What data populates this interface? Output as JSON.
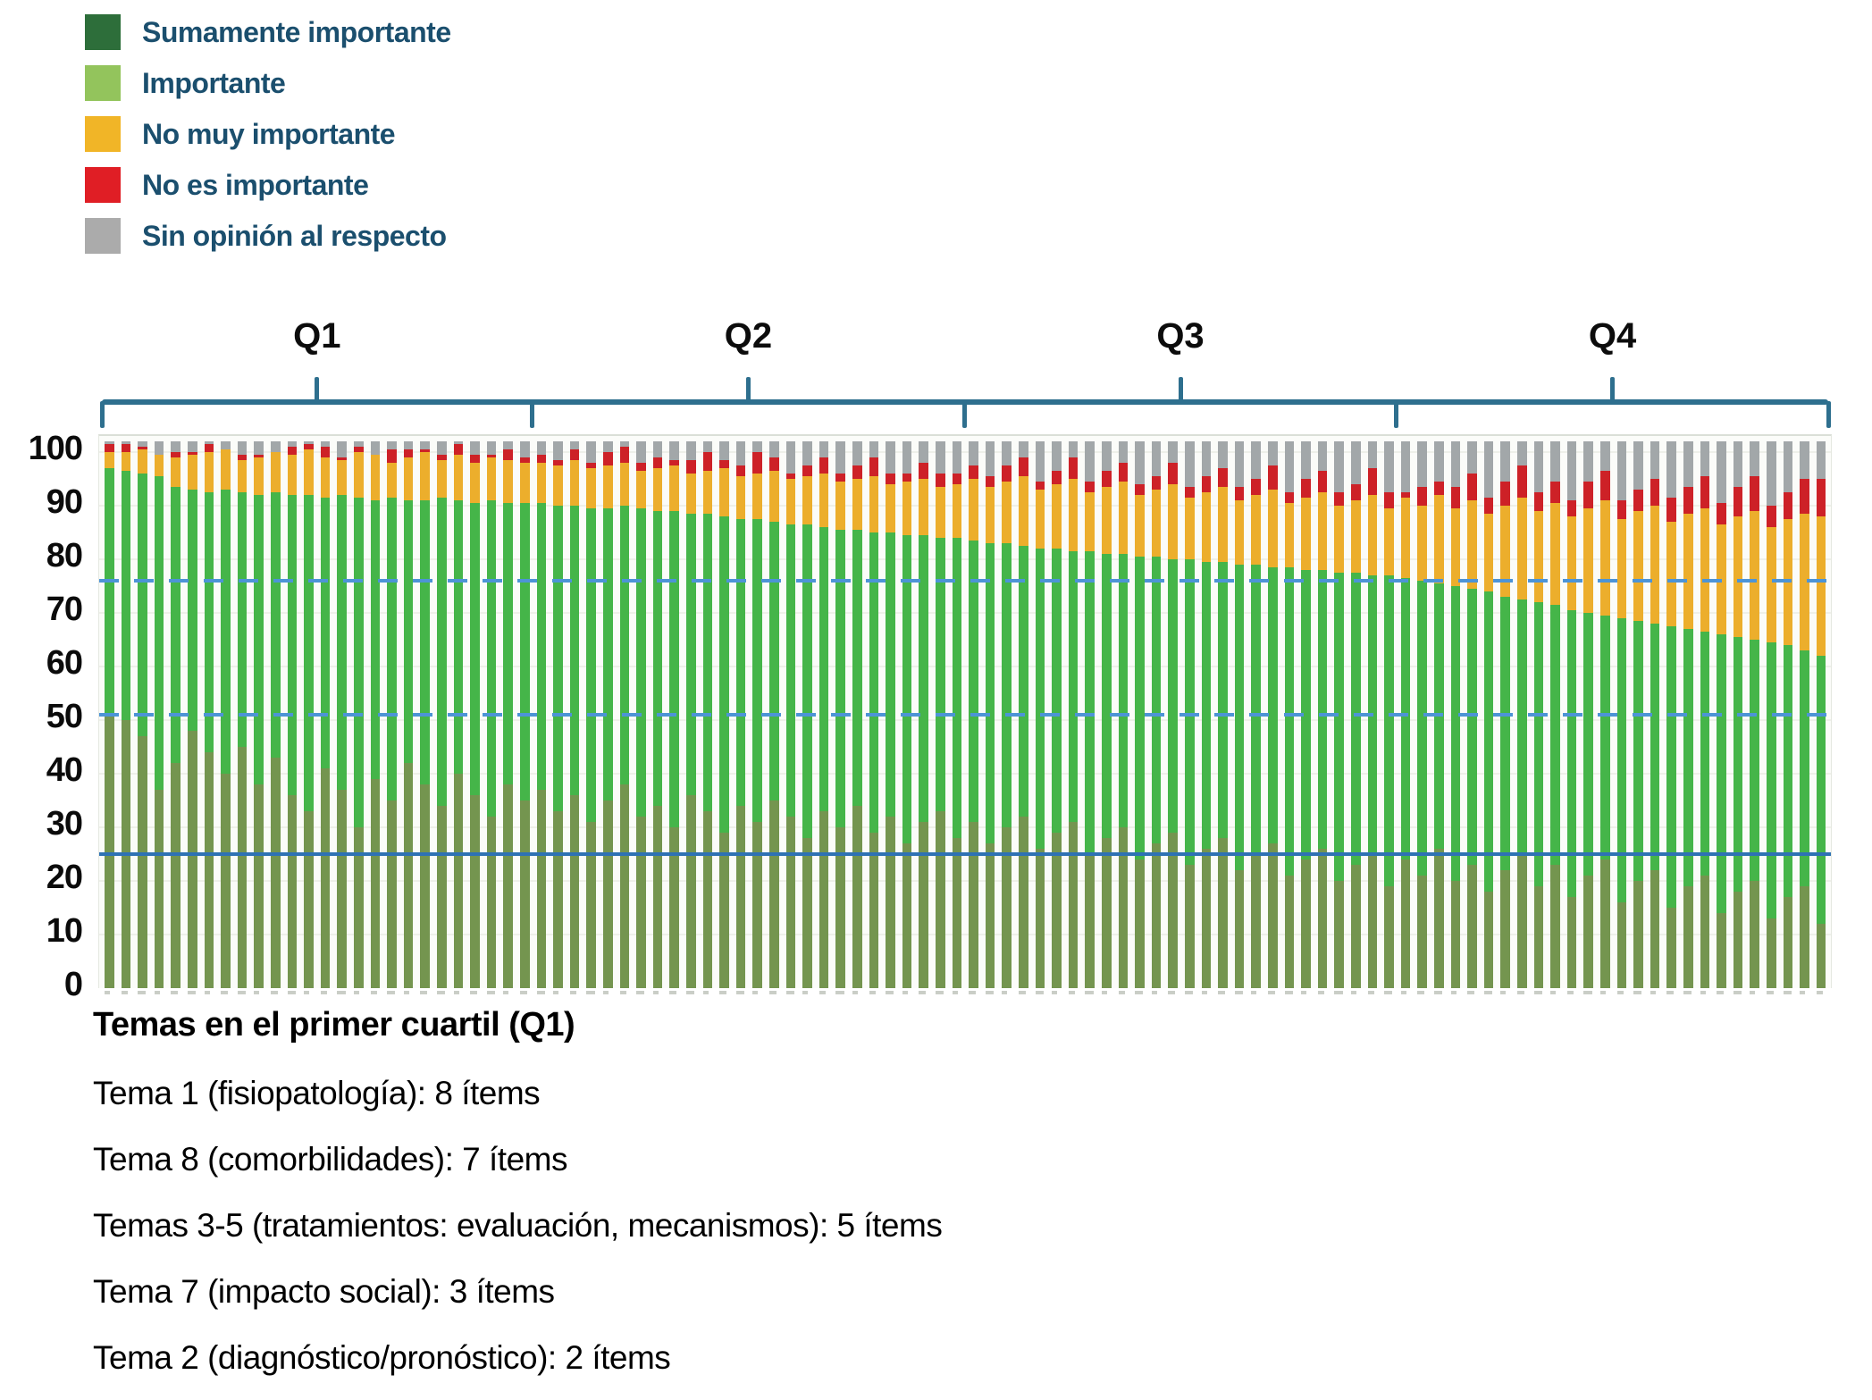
{
  "legend": {
    "items": [
      {
        "label": "Sumamente importante",
        "color": "#2d6e3a",
        "icon": "swatch-dark-green"
      },
      {
        "label": "Importante",
        "color": "#93c45c",
        "icon": "swatch-light-green"
      },
      {
        "label": "No muy importante",
        "color": "#f1b527",
        "icon": "swatch-yellow"
      },
      {
        "label": "No es importante",
        "color": "#e01e25",
        "icon": "swatch-red"
      },
      {
        "label": "Sin opinión al respecto",
        "color": "#ababab",
        "icon": "swatch-gray"
      }
    ]
  },
  "quartile_labels": [
    "Q1",
    "Q2",
    "Q3",
    "Q4"
  ],
  "y_axis_ticks": [
    100,
    90,
    80,
    70,
    60,
    50,
    40,
    30,
    20,
    10,
    0
  ],
  "notes": {
    "title": "Temas en el primer cuartil (Q1)",
    "lines": [
      "Tema 1 (fisiopatología): 8 ítems",
      "Tema 8 (comorbilidades): 7 ítems",
      "Temas 3-5 (tratamientos: evaluación, mecanismos): 5 ítems",
      "Tema 7 (impacto social): 3 ítems",
      "Tema 2 (diagnóstico/pronóstico): 2 ítems"
    ]
  },
  "colors": {
    "series": [
      "#74954f",
      "#45b549",
      "#ecae2c",
      "#cd2127",
      "#a2a7a9"
    ],
    "legend_text": "#1b4f6e",
    "bracket": "#2e6f8e",
    "dashed_line": "#4d94d6",
    "solid_line": "#2e72b4",
    "axis_text": "#0b0b0b"
  },
  "chart_data": {
    "type": "bar",
    "stacked": true,
    "percent_scale": true,
    "n_items": 104,
    "title": "",
    "xlabel": "",
    "ylabel": "",
    "ylim": [
      0,
      103
    ],
    "grid": "faint horizontal every 10",
    "legend_position": "top-left",
    "series_order_bottom_to_top": [
      "Sumamente importante",
      "Importante",
      "No muy importante",
      "No es importante",
      "Sin opinión al respecto"
    ],
    "reference_lines": [
      {
        "value": 76,
        "style": "dashed"
      },
      {
        "value": 51,
        "style": "dashed"
      },
      {
        "value": 25,
        "style": "solid"
      }
    ],
    "quartiles": [
      {
        "label": "Q1",
        "start_item": 1,
        "end_item": 26
      },
      {
        "label": "Q2",
        "start_item": 27,
        "end_item": 52
      },
      {
        "label": "Q3",
        "start_item": 53,
        "end_item": 78
      },
      {
        "label": "Q4",
        "start_item": 79,
        "end_item": 104
      }
    ],
    "bars": {
      "total_top": 102,
      "sumamente_top": [
        51,
        50,
        47,
        37,
        42,
        48,
        44,
        40,
        45,
        38,
        43,
        36,
        33,
        41,
        37,
        30,
        39,
        35,
        42,
        38,
        34,
        40,
        36,
        32,
        38,
        35,
        37,
        33,
        36,
        31,
        35,
        38,
        32,
        34,
        30,
        36,
        33,
        29,
        34,
        31,
        35,
        32,
        28,
        33,
        30,
        34,
        29,
        32,
        27,
        31,
        33,
        28,
        31,
        27,
        30,
        32,
        26,
        29,
        31,
        25,
        28,
        30,
        24,
        27,
        29,
        23,
        26,
        28,
        22,
        25,
        27,
        21,
        24,
        26,
        20,
        23,
        25,
        19,
        24,
        21,
        26,
        20,
        23,
        18,
        22,
        25,
        19,
        23,
        17,
        21,
        24,
        16,
        20,
        22,
        15,
        19,
        21,
        14,
        18,
        20,
        13,
        17,
        19,
        12
      ],
      "green_top": [
        97,
        96.5,
        96,
        95.5,
        93.5,
        93,
        92.5,
        93,
        92.5,
        92,
        92.5,
        92,
        92,
        91.5,
        92,
        91.5,
        91,
        91.5,
        91,
        91,
        91.5,
        91,
        90.5,
        91,
        90.5,
        90.5,
        90.5,
        90,
        90,
        89.5,
        89.5,
        90,
        89.5,
        89,
        89,
        88.5,
        88.5,
        88,
        87.5,
        87.5,
        87,
        86.5,
        86.5,
        86,
        85.5,
        85.5,
        85,
        85,
        84.5,
        84.5,
        84,
        84,
        83.5,
        83,
        83,
        82.5,
        82,
        82,
        81.5,
        81.5,
        81,
        81,
        80.5,
        80.5,
        80,
        80,
        79.5,
        79.5,
        79,
        79,
        78.5,
        78.5,
        78,
        78,
        77.5,
        77.5,
        77,
        77,
        76.5,
        76,
        75.5,
        75,
        74.5,
        74,
        73,
        72.5,
        72,
        71.5,
        70.5,
        70,
        69.5,
        69,
        68.5,
        68,
        67.5,
        67,
        66.5,
        66,
        65.5,
        65,
        64.5,
        64,
        63,
        62
      ],
      "yellow_top": [
        100,
        100,
        100.5,
        99.5,
        99,
        99.5,
        100,
        100.5,
        98.5,
        99,
        100,
        99.5,
        100.5,
        99,
        98.5,
        100,
        99.5,
        98,
        99,
        100,
        98.5,
        99.5,
        98,
        99,
        98.5,
        98,
        98,
        97.5,
        98.5,
        97,
        97.5,
        98,
        96.5,
        97,
        97.5,
        96,
        96.5,
        97,
        95.5,
        96,
        96.5,
        95,
        95.5,
        96,
        94.5,
        95,
        95.5,
        94,
        94.5,
        95,
        93.5,
        94,
        95,
        93.5,
        94.5,
        95.5,
        93,
        94,
        95,
        92.5,
        93.5,
        94.5,
        92,
        93,
        94,
        91.5,
        92.5,
        93.5,
        91,
        92,
        93,
        90.5,
        91.5,
        92.5,
        90,
        91,
        92,
        89.5,
        91.5,
        90,
        92,
        89.5,
        91,
        88.5,
        90,
        91.5,
        89,
        90.5,
        88,
        89.5,
        91,
        87.5,
        89,
        90,
        87,
        88.5,
        89.5,
        86.5,
        88,
        89,
        86,
        87.5,
        88.5,
        88
      ],
      "no_es_size": [
        1.5,
        1.5,
        0.5,
        0,
        1,
        0.5,
        1.5,
        0,
        1,
        0.5,
        0,
        1.5,
        1,
        2,
        0.5,
        1,
        0,
        2.5,
        1.5,
        0.5,
        1,
        2,
        1.5,
        0.5,
        2,
        1,
        1.5,
        1,
        2,
        1,
        2.5,
        3,
        1.5,
        2,
        1,
        2.5,
        3.5,
        1.5,
        2,
        4,
        2.5,
        1,
        2,
        3,
        1.5,
        2.5,
        3.5,
        2,
        1.5,
        3,
        2.5,
        2,
        2.5,
        2,
        3,
        3.5,
        1.5,
        2.5,
        4,
        2,
        3,
        3.5,
        2,
        2.5,
        4,
        2,
        3,
        3.5,
        2.5,
        3,
        4.5,
        2,
        3.5,
        4,
        2.5,
        3,
        5,
        3,
        1,
        3.5,
        2.5,
        4,
        5,
        3,
        4.5,
        6,
        3.5,
        4,
        3,
        5,
        5.5,
        3.5,
        4,
        5,
        4.5,
        5,
        6,
        4,
        5.5,
        6.5,
        4,
        5,
        6.5,
        7
      ]
    }
  }
}
